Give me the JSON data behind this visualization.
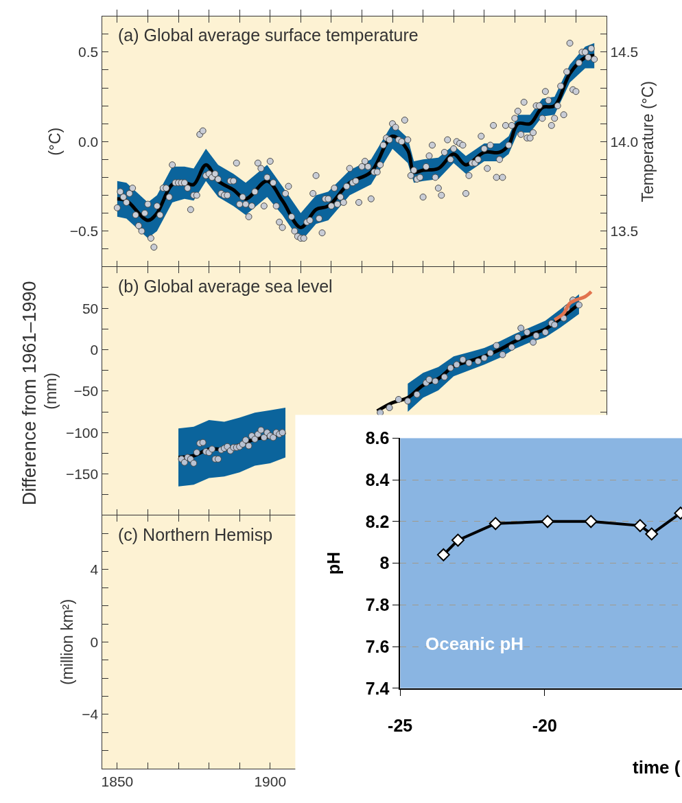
{
  "chart_data": [
    {
      "type": "scatter",
      "title": "(a) Global average surface temperature",
      "ylabel": "(°C)",
      "y2label": "Temperature (°C)",
      "grid": false,
      "legend": false,
      "tick_labels": "y",
      "xlim": [
        1845,
        2010
      ],
      "xticks": [
        1850,
        {
          "value": 1860,
          "label": null
        },
        {
          "value": 1870,
          "label": null
        },
        {
          "value": 1880,
          "label": null
        },
        {
          "value": 1890,
          "label": null
        },
        1900,
        {
          "value": 1910,
          "label": null
        },
        {
          "value": 1920,
          "label": null
        },
        {
          "value": 1930,
          "label": null
        },
        {
          "value": 1940,
          "label": null
        },
        1950,
        {
          "value": 1960,
          "label": null
        },
        {
          "value": 1970,
          "label": null
        },
        {
          "value": 1980,
          "label": null
        },
        {
          "value": 1990,
          "label": null
        },
        2000
      ],
      "ylim": [
        -0.7,
        0.7
      ],
      "yticks": [
        {
          "value": -0.6,
          "label": null
        },
        {
          "value": -0.5,
          "label": "−0.5"
        },
        {
          "value": -0.4,
          "label": null
        },
        {
          "value": -0.3,
          "label": null
        },
        {
          "value": -0.2,
          "label": null
        },
        {
          "value": -0.1,
          "label": null
        },
        {
          "value": 0,
          "label": "0.0"
        },
        {
          "value": 0.1,
          "label": null
        },
        {
          "value": 0.2,
          "label": null
        },
        {
          "value": 0.3,
          "label": null
        },
        {
          "value": 0.4,
          "label": null
        },
        0.5,
        {
          "value": 0.6,
          "label": null
        }
      ],
      "y2lim": [
        13.3,
        14.7
      ],
      "y2ticks": [
        {
          "value": 13.4,
          "label": null
        },
        13.5,
        {
          "value": 13.6,
          "label": null
        },
        {
          "value": 13.7,
          "label": null
        },
        {
          "value": 13.8,
          "label": null
        },
        {
          "value": 13.9,
          "label": null
        },
        {
          "value": 14.0,
          "label": "14.0"
        },
        {
          "value": 14.1,
          "label": null
        },
        {
          "value": 14.2,
          "label": null
        },
        {
          "value": 14.3,
          "label": null
        },
        {
          "value": 14.4,
          "label": null
        },
        14.5,
        {
          "value": 14.6,
          "label": null
        }
      ],
      "series": [
        {
          "type": "line",
          "color": "#000000",
          "marker": "none",
          "x": [
            1850,
            1853,
            1860,
            1863,
            1868,
            1872,
            1875,
            1879,
            1883,
            1888,
            1892,
            1899,
            1904,
            1910,
            1915,
            1919,
            1926,
            1933,
            1940,
            1945,
            1947,
            1950,
            1955,
            1960,
            1964,
            1970,
            1975,
            1978,
            1981,
            1985,
            1989,
            1993,
            1998,
            2003,
            2006
          ],
          "values": [
            -0.32,
            -0.33,
            -0.44,
            -0.4,
            -0.24,
            -0.23,
            -0.24,
            -0.13,
            -0.22,
            -0.27,
            -0.32,
            -0.22,
            -0.33,
            -0.48,
            -0.38,
            -0.36,
            -0.23,
            -0.17,
            0.03,
            -0.05,
            -0.17,
            -0.16,
            -0.15,
            -0.07,
            -0.13,
            -0.06,
            -0.06,
            -0.02,
            0.1,
            0.1,
            0.19,
            0.2,
            0.38,
            0.47,
            0.48
          ],
          "lower": [
            -0.42,
            -0.43,
            -0.54,
            -0.5,
            -0.34,
            -0.32,
            -0.33,
            -0.22,
            -0.31,
            -0.36,
            -0.41,
            -0.31,
            -0.41,
            -0.56,
            -0.46,
            -0.44,
            -0.3,
            -0.24,
            -0.04,
            -0.12,
            -0.23,
            -0.22,
            -0.21,
            -0.12,
            -0.18,
            -0.11,
            -0.11,
            -0.07,
            0.05,
            0.05,
            0.14,
            0.15,
            0.33,
            0.41,
            0.41
          ],
          "upper": [
            -0.22,
            -0.23,
            -0.34,
            -0.3,
            -0.14,
            -0.14,
            -0.15,
            -0.04,
            -0.13,
            -0.18,
            -0.23,
            -0.13,
            -0.25,
            -0.4,
            -0.3,
            -0.28,
            -0.16,
            -0.1,
            0.1,
            0.02,
            -0.11,
            -0.1,
            -0.09,
            -0.02,
            -0.08,
            -0.01,
            -0.01,
            0.03,
            0.15,
            0.15,
            0.24,
            0.25,
            0.43,
            0.53,
            0.55
          ]
        },
        {
          "type": "scatter",
          "color": "#c9cdd6",
          "marker": "circle",
          "x": [
            1850,
            1851,
            1852,
            1853,
            1854,
            1855,
            1856,
            1857,
            1858,
            1859,
            1860,
            1861,
            1862,
            1863,
            1864,
            1865,
            1866,
            1867,
            1868,
            1869,
            1870,
            1871,
            1872,
            1873,
            1874,
            1875,
            1876,
            1877,
            1878,
            1879,
            1880,
            1881,
            1882,
            1883,
            1884,
            1885,
            1886,
            1887,
            1888,
            1889,
            1890,
            1891,
            1892,
            1893,
            1894,
            1895,
            1896,
            1897,
            1898,
            1899,
            1900,
            1901,
            1902,
            1903,
            1904,
            1905,
            1906,
            1907,
            1908,
            1909,
            1910,
            1911,
            1912,
            1913,
            1914,
            1915,
            1916,
            1917,
            1918,
            1919,
            1920,
            1921,
            1922,
            1923,
            1924,
            1925,
            1926,
            1927,
            1928,
            1929,
            1930,
            1931,
            1932,
            1933,
            1934,
            1935,
            1936,
            1937,
            1938,
            1939,
            1940,
            1941,
            1942,
            1943,
            1944,
            1945,
            1946,
            1947,
            1948,
            1949,
            1950,
            1951,
            1952,
            1953,
            1954,
            1955,
            1956,
            1957,
            1958,
            1959,
            1960,
            1961,
            1962,
            1963,
            1964,
            1965,
            1966,
            1967,
            1968,
            1969,
            1970,
            1971,
            1972,
            1973,
            1974,
            1975,
            1976,
            1977,
            1978,
            1979,
            1980,
            1981,
            1982,
            1983,
            1984,
            1985,
            1986,
            1987,
            1988,
            1989,
            1990,
            1991,
            1992,
            1993,
            1994,
            1995,
            1996,
            1997,
            1998,
            1999,
            2000,
            2001,
            2002,
            2003,
            2004,
            2005,
            2006
          ],
          "values": [
            -0.37,
            -0.28,
            -0.31,
            -0.34,
            -0.29,
            -0.26,
            -0.41,
            -0.47,
            -0.5,
            -0.4,
            -0.35,
            -0.54,
            -0.59,
            -0.36,
            -0.41,
            -0.26,
            -0.26,
            -0.31,
            -0.13,
            -0.23,
            -0.23,
            -0.23,
            -0.23,
            -0.26,
            -0.38,
            -0.3,
            -0.3,
            0.04,
            0.06,
            -0.19,
            -0.18,
            -0.2,
            -0.18,
            -0.21,
            -0.29,
            -0.3,
            -0.3,
            -0.22,
            -0.22,
            -0.12,
            -0.35,
            -0.31,
            -0.35,
            -0.42,
            -0.36,
            -0.28,
            -0.12,
            -0.15,
            -0.36,
            -0.2,
            -0.11,
            -0.23,
            -0.36,
            -0.45,
            -0.48,
            -0.29,
            -0.25,
            -0.42,
            -0.5,
            -0.53,
            -0.54,
            -0.54,
            -0.45,
            -0.44,
            -0.29,
            -0.19,
            -0.43,
            -0.51,
            -0.32,
            -0.32,
            -0.36,
            -0.26,
            -0.35,
            -0.31,
            -0.34,
            -0.25,
            -0.15,
            -0.23,
            -0.22,
            -0.34,
            -0.14,
            -0.11,
            -0.14,
            -0.32,
            -0.17,
            -0.17,
            -0.13,
            -0.02,
            0.02,
            0.01,
            0.1,
            0.08,
            0.01,
            0.0,
            0.12,
            0.01,
            -0.19,
            -0.16,
            -0.21,
            -0.2,
            -0.31,
            -0.14,
            -0.08,
            -0.02,
            -0.2,
            -0.26,
            -0.3,
            -0.06,
            0.01,
            -0.1,
            -0.04,
            0.0,
            -0.01,
            -0.02,
            -0.29,
            -0.19,
            -0.12,
            -0.12,
            -0.1,
            0.03,
            -0.04,
            -0.15,
            -0.02,
            0.09,
            -0.2,
            -0.1,
            -0.2,
            0.09,
            -0.02,
            0.09,
            0.13,
            0.17,
            0.04,
            0.22,
            0.02,
            0.02,
            0.05,
            0.2,
            0.2,
            0.13,
            0.28,
            0.23,
            0.09,
            0.13,
            0.2,
            0.31,
            0.15,
            0.39,
            0.55,
            0.29,
            0.28,
            0.44,
            0.5,
            0.5,
            0.47,
            0.52,
            0.46
          ]
        }
      ]
    },
    {
      "type": "scatter",
      "title": "(b) Global average sea level",
      "ylabel": "(mm)",
      "annotations": [
        "Difference from 1961–1990"
      ],
      "grid": false,
      "legend": false,
      "tick_labels": "y",
      "xlim": [
        1845,
        2010
      ],
      "xticks": [
        1850,
        {
          "value": 1860,
          "label": null
        },
        {
          "value": 1870,
          "label": null
        },
        {
          "value": 1880,
          "label": null
        },
        {
          "value": 1890,
          "label": null
        },
        1900,
        {
          "value": 1910,
          "label": null
        },
        {
          "value": 1920,
          "label": null
        },
        {
          "value": 1930,
          "label": null
        },
        {
          "value": 1940,
          "label": null
        },
        1950,
        {
          "value": 1960,
          "label": null
        },
        {
          "value": 1970,
          "label": null
        },
        {
          "value": 1980,
          "label": null
        },
        {
          "value": 1990,
          "label": null
        },
        2000
      ],
      "ylim": [
        -200,
        100
      ],
      "yticks": [
        {
          "value": -175,
          "label": null
        },
        {
          "value": -150,
          "label": "−150"
        },
        {
          "value": -125,
          "label": null
        },
        {
          "value": -100,
          "label": "−100"
        },
        {
          "value": -75,
          "label": null
        },
        {
          "value": -50,
          "label": "−50"
        },
        {
          "value": -25,
          "label": null
        },
        0,
        {
          "value": 25,
          "label": null
        },
        50,
        {
          "value": 75,
          "label": null
        }
      ],
      "series": [
        {
          "type": "line",
          "color": "#000000",
          "marker": "none",
          "x": [
            1870,
            1875,
            1880,
            1885,
            1890,
            1895,
            1900,
            1905,
            1910,
            1915,
            1920,
            1925,
            1930,
            1935,
            1940,
            1945,
            1950,
            1955,
            1960,
            1965,
            1970,
            1975,
            1980,
            1985,
            1990,
            1995,
            2001
          ],
          "values": [
            -130,
            -128,
            -120,
            -120,
            -115,
            -108,
            -105,
            -100,
            null,
            null,
            null,
            null,
            null,
            -74,
            -64,
            -58,
            -43,
            -35,
            -20,
            -14,
            -8,
            0,
            10,
            18,
            25,
            38,
            55
          ],
          "lower": [
            -165,
            -163,
            -155,
            -153,
            -148,
            -140,
            -137,
            -130,
            null,
            null,
            null,
            null,
            null,
            null,
            null,
            -75,
            -58,
            -49,
            -32,
            -25,
            -18,
            -10,
            1,
            9,
            15,
            27,
            43
          ],
          "upper": [
            -95,
            -93,
            -85,
            -87,
            -82,
            -76,
            -73,
            -70,
            null,
            null,
            null,
            null,
            null,
            null,
            null,
            -41,
            -28,
            -21,
            -8,
            -3,
            2,
            10,
            19,
            27,
            35,
            49,
            67
          ]
        },
        {
          "type": "scatter",
          "color": "#b9c2d2",
          "marker": "circle",
          "x": [
            1871,
            1872,
            1873,
            1874,
            1875,
            1876,
            1877,
            1878,
            1879,
            1880,
            1881,
            1882,
            1883,
            1884,
            1885,
            1886,
            1887,
            1888,
            1889,
            1890,
            1891,
            1892,
            1893,
            1894,
            1895,
            1896,
            1897,
            1898,
            1899,
            1900,
            1901,
            1902,
            1903,
            1904,
            1936,
            1939,
            1942,
            1945,
            1948,
            1951,
            1952,
            1954,
            1957,
            1959,
            1961,
            1963,
            1965,
            1968,
            1970,
            1972,
            1974,
            1976,
            1979,
            1981,
            1982,
            1984,
            1986,
            1987,
            1990,
            1992,
            1993,
            1996,
            1997,
            1999,
            2001
          ],
          "values": [
            -132,
            -136,
            -130,
            -132,
            -137,
            -124,
            -113,
            -112,
            -123,
            -124,
            -120,
            -132,
            -132,
            -121,
            -119,
            -117,
            -122,
            -118,
            -118,
            -117,
            -114,
            -109,
            -116,
            -104,
            -108,
            -102,
            -97,
            -106,
            -100,
            -104,
            -106,
            -100,
            -102,
            -100,
            -76,
            -70,
            -60,
            -62,
            -54,
            -40,
            -36,
            -38,
            -33,
            -22,
            -18,
            -12,
            -16,
            -14,
            -10,
            -4,
            5,
            -6,
            3,
            15,
            26,
            21,
            9,
            17,
            21,
            32,
            30,
            38,
            50,
            60,
            54
          ]
        },
        {
          "type": "line",
          "color": "#e2734e",
          "marker": "none",
          "x": [
            1993,
            1996,
            1998,
            2000,
            2003,
            2005
          ],
          "values": [
            36,
            44,
            56,
            60,
            64,
            70
          ]
        }
      ]
    },
    {
      "type": "line",
      "title": "(c) Northern Hemisp",
      "ylabel": "(million km²)",
      "grid": false,
      "legend": false,
      "xlim": [
        1845,
        2010
      ],
      "xticks": [
        1850,
        {
          "value": 1860,
          "label": null
        },
        {
          "value": 1870,
          "label": null
        },
        {
          "value": 1880,
          "label": null
        },
        {
          "value": 1890,
          "label": null
        },
        1900
      ],
      "ylim": [
        -7,
        7
      ],
      "yticks": [
        {
          "value": -6,
          "label": null
        },
        {
          "value": -5,
          "label": null
        },
        {
          "value": -4,
          "label": "−4"
        },
        {
          "value": -3,
          "label": null
        },
        {
          "value": -2,
          "label": null
        },
        {
          "value": -1,
          "label": null
        },
        0,
        {
          "value": 1,
          "label": null
        },
        {
          "value": 2,
          "label": null
        },
        {
          "value": 3,
          "label": null
        },
        4,
        {
          "value": 5,
          "label": null
        },
        {
          "value": 6,
          "label": null
        }
      ]
    },
    {
      "type": "line",
      "ylabel": "pH",
      "annotations": [
        "Oceanic pH",
        "time ("
      ],
      "grid": "y",
      "legend": false,
      "marker": "diamond",
      "line_style": "solid",
      "xlim": [
        -25,
        -15.25
      ],
      "xticks": [
        -25,
        -20
      ],
      "ylim": [
        7.4,
        8.6
      ],
      "yticks": [
        7.4,
        7.6,
        7.8,
        8,
        8.2,
        8.4,
        8.6
      ],
      "series": [
        {
          "color": "#000000",
          "x": [
            -23.5,
            -23.0,
            -21.7,
            -19.9,
            -18.4,
            -16.7,
            -16.3,
            -15.3
          ],
          "values": [
            8.04,
            8.11,
            8.19,
            8.2,
            8.2,
            8.18,
            8.14,
            8.24
          ]
        }
      ]
    }
  ]
}
